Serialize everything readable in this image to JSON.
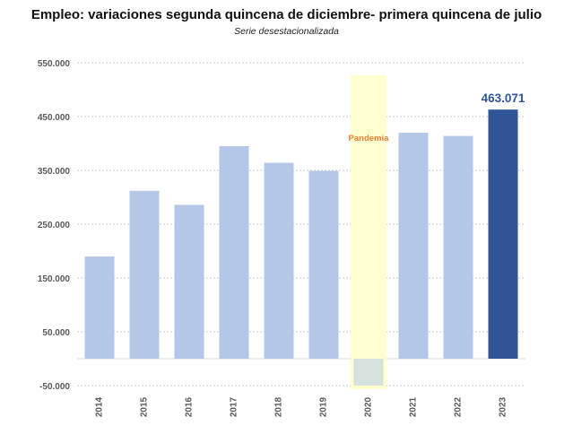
{
  "chart_data": {
    "type": "bar",
    "title": "Empleo: variaciones segunda quincena de diciembre- primera quincena de julio",
    "subtitle": "Serie desestacionalizada",
    "xlabel": "",
    "ylabel": "",
    "categories": [
      "2014",
      "2015",
      "2016",
      "2017",
      "2018",
      "2019",
      "2020",
      "2021",
      "2022",
      "2023"
    ],
    "values": [
      190000,
      312000,
      286000,
      395000,
      364000,
      349000,
      -50000,
      420000,
      414000,
      463071
    ],
    "ylim": [
      -50000,
      550000
    ],
    "y_ticks": [
      -50000,
      50000,
      150000,
      250000,
      350000,
      450000,
      550000
    ],
    "y_tick_labels": [
      "-50.000",
      "50.000",
      "150.000",
      "250.000",
      "350.000",
      "450.000",
      "550.000"
    ],
    "grid": true,
    "highlight": {
      "category": "2023",
      "label": "463.071"
    },
    "annotation": {
      "category": "2020",
      "label": "Pandemia"
    },
    "colors": {
      "bar": "#b4c7e7",
      "highlight_bar": "#2f5597",
      "highlight_label": "#2f5597",
      "band": "#ffffcc",
      "annotation_text": "#ed7d31",
      "grid": "#c8c8c8",
      "tick_text": "#595959"
    }
  }
}
